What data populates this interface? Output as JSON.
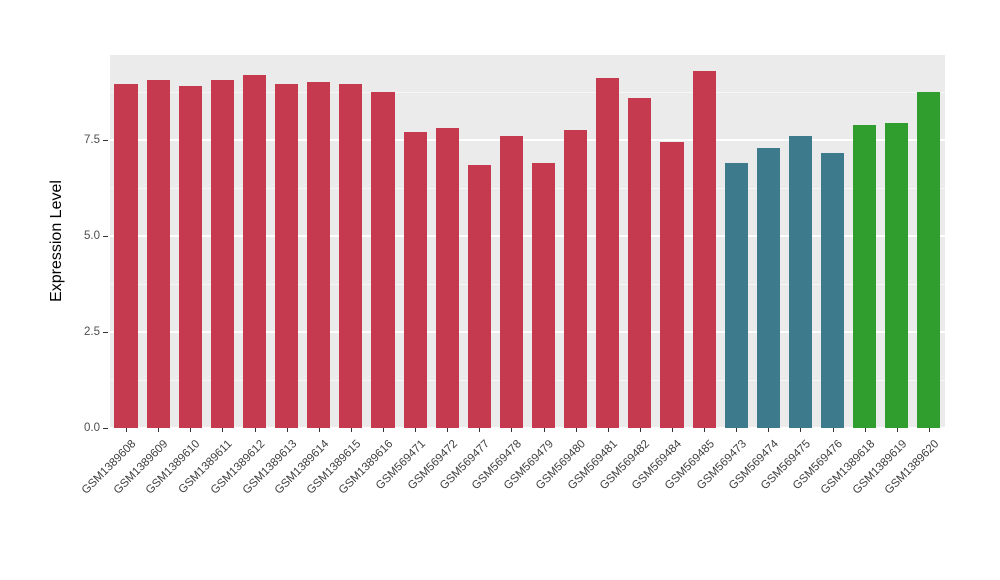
{
  "chart_data": {
    "type": "bar",
    "title": "",
    "xlabel": "",
    "ylabel": "Expression Level",
    "ylim": [
      0,
      9.71
    ],
    "ytick_values": [
      0,
      2.5,
      5,
      7.5
    ],
    "ytick_labels": [
      "0.0",
      "2.5",
      "5.0",
      "7.5"
    ],
    "yminor_values": [
      1.25,
      3.75,
      6.25,
      8.75
    ],
    "grid": true,
    "legend_position": "none",
    "categories": [
      "GSM1389608",
      "GSM1389609",
      "GSM1389610",
      "GSM1389611",
      "GSM1389612",
      "GSM1389613",
      "GSM1389614",
      "GSM1389615",
      "GSM1389616",
      "GSM569471",
      "GSM569472",
      "GSM569477",
      "GSM569478",
      "GSM569479",
      "GSM569480",
      "GSM569481",
      "GSM569482",
      "GSM569484",
      "GSM569485",
      "GSM569473",
      "GSM569474",
      "GSM569475",
      "GSM569476",
      "GSM1389618",
      "GSM1389619",
      "GSM1389620"
    ],
    "values": [
      8.95,
      9.05,
      8.9,
      9.05,
      9.2,
      8.95,
      9.0,
      8.95,
      8.75,
      7.7,
      7.8,
      6.85,
      7.6,
      6.9,
      7.75,
      9.1,
      8.6,
      7.45,
      9.3,
      6.9,
      7.3,
      7.6,
      7.15,
      7.9,
      7.95,
      8.75
    ],
    "bar_groups": [
      "red",
      "red",
      "red",
      "red",
      "red",
      "red",
      "red",
      "red",
      "red",
      "red",
      "red",
      "red",
      "red",
      "red",
      "red",
      "red",
      "red",
      "red",
      "red",
      "teal",
      "teal",
      "teal",
      "teal",
      "green",
      "green",
      "green"
    ],
    "group_colors": {
      "red": "#C53A4E",
      "teal": "#3C7A8C",
      "green": "#2F9E2F"
    },
    "panel_bg": "#EBEBEB",
    "grid_color": "#FFFFFF"
  }
}
